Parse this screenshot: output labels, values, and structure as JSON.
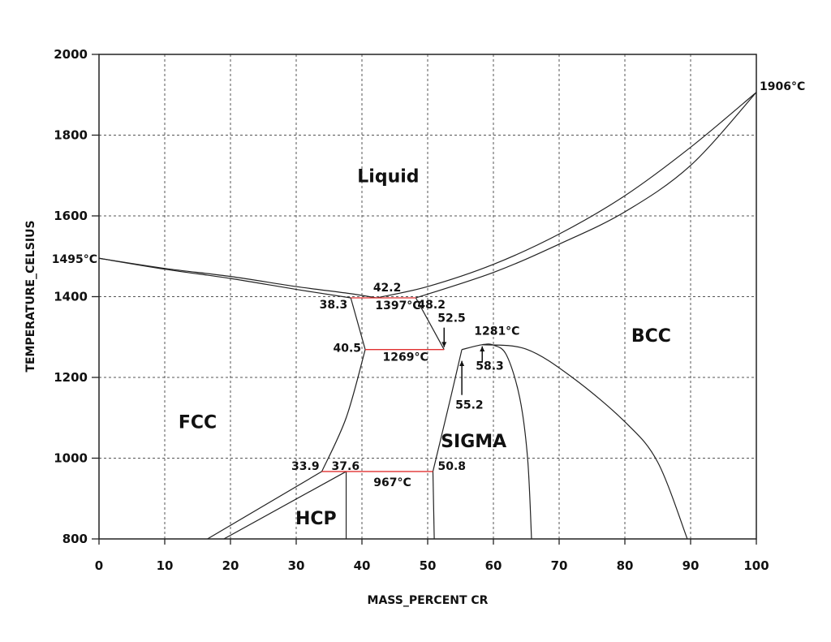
{
  "chart_data": {
    "type": "line",
    "title": "",
    "xlabel": "MASS_PERCENT CR",
    "ylabel": "TEMPERATURE_CELSIUS",
    "xlim": [
      0,
      100
    ],
    "ylim": [
      800,
      2000
    ],
    "xticks": [
      0,
      10,
      20,
      30,
      40,
      50,
      60,
      70,
      80,
      90,
      100
    ],
    "yticks": [
      800,
      1000,
      1200,
      1400,
      1600,
      1800,
      2000
    ],
    "grid": true,
    "regions": [
      {
        "label": "Liquid",
        "x": 44,
        "y": 1700
      },
      {
        "label": "BCC",
        "x": 84,
        "y": 1305
      },
      {
        "label": "FCC",
        "x": 15,
        "y": 1090
      },
      {
        "label": "SIGMA",
        "x": 57,
        "y": 1043
      },
      {
        "label": "HCP",
        "x": 33,
        "y": 852
      }
    ],
    "curves": [
      {
        "name": "liquidus-fe",
        "points": [
          [
            0,
            1495
          ],
          [
            10,
            1470
          ],
          [
            20,
            1450
          ],
          [
            30,
            1425
          ],
          [
            38,
            1408
          ],
          [
            42.2,
            1397
          ]
        ]
      },
      {
        "name": "solidus-fe",
        "points": [
          [
            0,
            1495
          ],
          [
            10,
            1468
          ],
          [
            20,
            1445
          ],
          [
            30,
            1418
          ],
          [
            38.3,
            1397
          ]
        ]
      },
      {
        "name": "liquidus-cr",
        "points": [
          [
            42.2,
            1397
          ],
          [
            50,
            1425
          ],
          [
            60,
            1480
          ],
          [
            70,
            1555
          ],
          [
            80,
            1650
          ],
          [
            90,
            1770
          ],
          [
            100,
            1906
          ]
        ]
      },
      {
        "name": "solidus-cr",
        "points": [
          [
            48.2,
            1397
          ],
          [
            60,
            1460
          ],
          [
            70,
            1530
          ],
          [
            80,
            1610
          ],
          [
            90,
            1725
          ],
          [
            100,
            1906
          ]
        ]
      },
      {
        "name": "fcc-sigma-boundary",
        "points": [
          [
            38.3,
            1397
          ],
          [
            40.5,
            1269
          ]
        ]
      },
      {
        "name": "bcc-sigma-boundary",
        "points": [
          [
            48.2,
            1397
          ],
          [
            52.5,
            1269
          ]
        ]
      },
      {
        "name": "fcc-boundary-low",
        "points": [
          [
            40.5,
            1269
          ],
          [
            37.6,
            1100
          ],
          [
            33.9,
            967
          ]
        ]
      },
      {
        "name": "hcp-fcc-upper",
        "points": [
          [
            33.9,
            967
          ],
          [
            16.5,
            800
          ]
        ]
      },
      {
        "name": "hcp-fcc-lower",
        "points": [
          [
            37.6,
            967
          ],
          [
            19,
            800
          ]
        ]
      },
      {
        "name": "hcp-right",
        "points": [
          [
            37.6,
            967
          ],
          [
            37.6,
            800
          ]
        ]
      },
      {
        "name": "sigma-left-lower",
        "points": [
          [
            50.8,
            967
          ],
          [
            51,
            800
          ]
        ]
      },
      {
        "name": "sigma-left",
        "points": [
          [
            50.8,
            967
          ],
          [
            53.5,
            1150
          ],
          [
            55.2,
            1269
          ]
        ]
      },
      {
        "name": "sigma-dome",
        "points": [
          [
            55.2,
            1269
          ],
          [
            58.3,
            1281
          ],
          [
            60,
            1280
          ],
          [
            62,
            1255
          ],
          [
            64,
            1150
          ],
          [
            65.2,
            1000
          ],
          [
            65.8,
            800
          ]
        ]
      },
      {
        "name": "bcc-solvus",
        "points": [
          [
            58.3,
            1281
          ],
          [
            65,
            1270
          ],
          [
            72,
            1200
          ],
          [
            80,
            1090
          ],
          [
            85,
            990
          ],
          [
            89.5,
            800
          ]
        ]
      }
    ],
    "isotherms": [
      {
        "x1": 38.3,
        "x2": 48.2,
        "y": 1397
      },
      {
        "x1": 40.5,
        "x2": 52.5,
        "y": 1269
      },
      {
        "x1": 33.9,
        "x2": 50.8,
        "y": 967
      }
    ],
    "annotations": [
      {
        "text": "1495°C",
        "x": 0,
        "y": 1495
      },
      {
        "text": "1906°C",
        "x": 100,
        "y": 1906
      },
      {
        "text": "42.2",
        "x": 42.2,
        "y": 1397
      },
      {
        "text": "38.3",
        "x": 38.3,
        "y": 1397
      },
      {
        "text": "1397°C",
        "x": 43.5,
        "y": 1397
      },
      {
        "text": "48.2",
        "x": 48.2,
        "y": 1397
      },
      {
        "text": "52.5",
        "x": 52.5,
        "y": 1269
      },
      {
        "text": "1281°C",
        "x": 58.3,
        "y": 1281
      },
      {
        "text": "40.5",
        "x": 40.5,
        "y": 1269
      },
      {
        "text": "1269°C",
        "x": 45,
        "y": 1269
      },
      {
        "text": "58.3",
        "x": 58.3,
        "y": 1281
      },
      {
        "text": "55.2",
        "x": 55.2,
        "y": 1269
      },
      {
        "text": "33.9",
        "x": 33.9,
        "y": 967
      },
      {
        "text": "37.6",
        "x": 37.6,
        "y": 967
      },
      {
        "text": "50.8",
        "x": 50.8,
        "y": 967
      },
      {
        "text": "967°C",
        "x": 43,
        "y": 967
      }
    ]
  }
}
